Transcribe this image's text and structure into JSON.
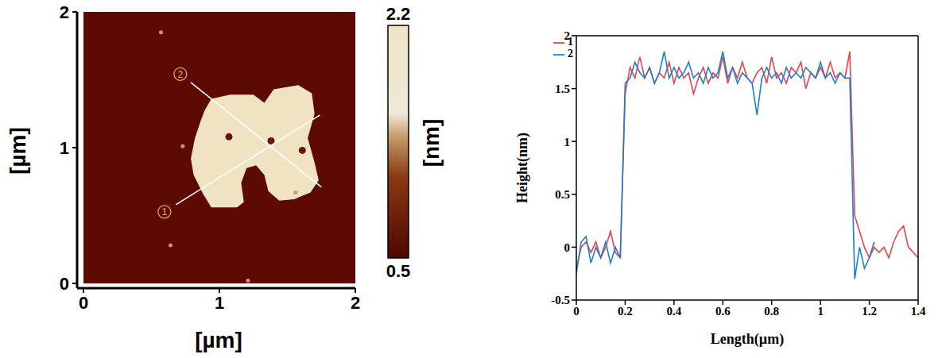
{
  "chart_data": [
    {
      "type": "image",
      "xlabel": "[µm]",
      "ylabel": "[µm]",
      "xlim": [
        0,
        2
      ],
      "ylim": [
        0,
        2
      ],
      "xticks": [
        0,
        1,
        2
      ],
      "yticks": [
        0,
        1,
        2
      ],
      "colorbar": {
        "range": [
          0.5,
          2.2
        ],
        "ticks": [
          0.5,
          2.2
        ],
        "label": "[nm]"
      },
      "flake": [
        [
          0.94,
          1.36
        ],
        [
          1.08,
          1.39
        ],
        [
          1.25,
          1.39
        ],
        [
          1.33,
          1.33
        ],
        [
          1.4,
          1.43
        ],
        [
          1.58,
          1.46
        ],
        [
          1.68,
          1.4
        ],
        [
          1.7,
          1.25
        ],
        [
          1.65,
          1.07
        ],
        [
          1.7,
          0.89
        ],
        [
          1.73,
          0.76
        ],
        [
          1.67,
          0.67
        ],
        [
          1.55,
          0.62
        ],
        [
          1.44,
          0.61
        ],
        [
          1.36,
          0.68
        ],
        [
          1.33,
          0.8
        ],
        [
          1.27,
          0.87
        ],
        [
          1.2,
          0.85
        ],
        [
          1.16,
          0.74
        ],
        [
          1.18,
          0.6
        ],
        [
          1.13,
          0.56
        ],
        [
          0.94,
          0.56
        ],
        [
          0.88,
          0.66
        ],
        [
          0.81,
          0.8
        ],
        [
          0.79,
          0.92
        ],
        [
          0.82,
          1.07
        ],
        [
          0.86,
          1.19
        ],
        [
          0.89,
          1.27
        ]
      ],
      "holes": [
        [
          1.07,
          1.08
        ],
        [
          1.38,
          1.05
        ],
        [
          1.61,
          0.98
        ]
      ],
      "particles": [
        [
          0.57,
          1.85
        ],
        [
          0.73,
          1.01
        ],
        [
          1.56,
          0.67
        ],
        [
          0.64,
          0.28
        ],
        [
          1.21,
          0.02
        ]
      ],
      "profile_lines": [
        {
          "label": "1",
          "from": [
            0.68,
            0.58
          ],
          "to": [
            1.74,
            1.24
          ]
        },
        {
          "label": "2",
          "from": [
            0.79,
            1.48
          ],
          "to": [
            1.75,
            0.71
          ]
        }
      ]
    },
    {
      "type": "line",
      "xlabel": "Length(µm)",
      "ylabel": "Height(nm)",
      "xlim": [
        0,
        1.4
      ],
      "ylim": [
        -0.5,
        2
      ],
      "xticks": [
        0,
        0.2,
        0.4,
        0.6,
        0.8,
        1,
        1.2,
        1.4
      ],
      "yticks": [
        -0.5,
        0,
        0.5,
        1,
        1.5,
        2
      ],
      "legend": "top-left",
      "series": [
        {
          "name": "1",
          "color": "#e8434b",
          "x": [
            0,
            0.02,
            0.04,
            0.06,
            0.08,
            0.1,
            0.12,
            0.14,
            0.16,
            0.18,
            0.2,
            0.22,
            0.24,
            0.26,
            0.28,
            0.3,
            0.32,
            0.34,
            0.36,
            0.38,
            0.4,
            0.42,
            0.44,
            0.46,
            0.48,
            0.5,
            0.52,
            0.54,
            0.56,
            0.58,
            0.6,
            0.62,
            0.64,
            0.66,
            0.68,
            0.7,
            0.72,
            0.74,
            0.76,
            0.78,
            0.8,
            0.82,
            0.84,
            0.86,
            0.88,
            0.9,
            0.92,
            0.94,
            0.96,
            0.98,
            1.0,
            1.02,
            1.04,
            1.06,
            1.08,
            1.1,
            1.12,
            1.14,
            1.16,
            1.18,
            1.2,
            1.22,
            1.24,
            1.26,
            1.28,
            1.3,
            1.32,
            1.34,
            1.36,
            1.38,
            1.4
          ],
          "values": [
            -0.2,
            0.0,
            0.05,
            -0.05,
            0.05,
            -0.1,
            0.0,
            0.15,
            -0.05,
            -0.1,
            1.45,
            1.7,
            1.6,
            1.8,
            1.6,
            1.7,
            1.55,
            1.65,
            1.6,
            1.75,
            1.55,
            1.7,
            1.6,
            1.65,
            1.45,
            1.6,
            1.7,
            1.55,
            1.65,
            1.6,
            1.8,
            1.55,
            1.7,
            1.6,
            1.75,
            1.6,
            1.55,
            1.65,
            1.7,
            1.55,
            1.8,
            1.6,
            1.65,
            1.55,
            1.7,
            1.65,
            1.75,
            1.5,
            1.65,
            1.6,
            1.7,
            1.6,
            1.75,
            1.6,
            1.65,
            1.6,
            1.85,
            0.3,
            0.15,
            0.0,
            -0.1,
            0.0,
            -0.05,
            0.0,
            -0.1,
            0.05,
            0.15,
            0.2,
            0.0,
            -0.05,
            -0.1
          ]
        },
        {
          "name": "2",
          "color": "#1f7fcf",
          "x": [
            0,
            0.02,
            0.04,
            0.06,
            0.08,
            0.1,
            0.12,
            0.14,
            0.16,
            0.18,
            0.2,
            0.22,
            0.24,
            0.26,
            0.28,
            0.3,
            0.32,
            0.34,
            0.36,
            0.38,
            0.4,
            0.42,
            0.44,
            0.46,
            0.48,
            0.5,
            0.52,
            0.54,
            0.56,
            0.58,
            0.6,
            0.62,
            0.64,
            0.66,
            0.68,
            0.7,
            0.72,
            0.74,
            0.76,
            0.78,
            0.8,
            0.82,
            0.84,
            0.86,
            0.88,
            0.9,
            0.92,
            0.94,
            0.96,
            0.98,
            1.0,
            1.02,
            1.04,
            1.06,
            1.08,
            1.1,
            1.12,
            1.14,
            1.16,
            1.18,
            1.2,
            1.22
          ],
          "values": [
            -0.25,
            0.05,
            0.1,
            -0.15,
            0.0,
            -0.1,
            0.05,
            -0.15,
            0.0,
            -0.1,
            1.55,
            1.6,
            1.75,
            1.65,
            1.6,
            1.7,
            1.55,
            1.65,
            1.85,
            1.6,
            1.7,
            1.6,
            1.65,
            1.75,
            1.6,
            1.65,
            1.55,
            1.7,
            1.6,
            1.65,
            1.85,
            1.6,
            1.7,
            1.55,
            1.65,
            1.6,
            1.55,
            1.25,
            1.6,
            1.7,
            1.6,
            1.65,
            1.55,
            1.7,
            1.6,
            1.65,
            1.6,
            1.7,
            1.65,
            1.6,
            1.75,
            1.6,
            1.65,
            1.55,
            1.65,
            1.6,
            1.6,
            -0.3,
            0.0,
            -0.2,
            -0.1,
            0.05
          ]
        }
      ]
    }
  ]
}
